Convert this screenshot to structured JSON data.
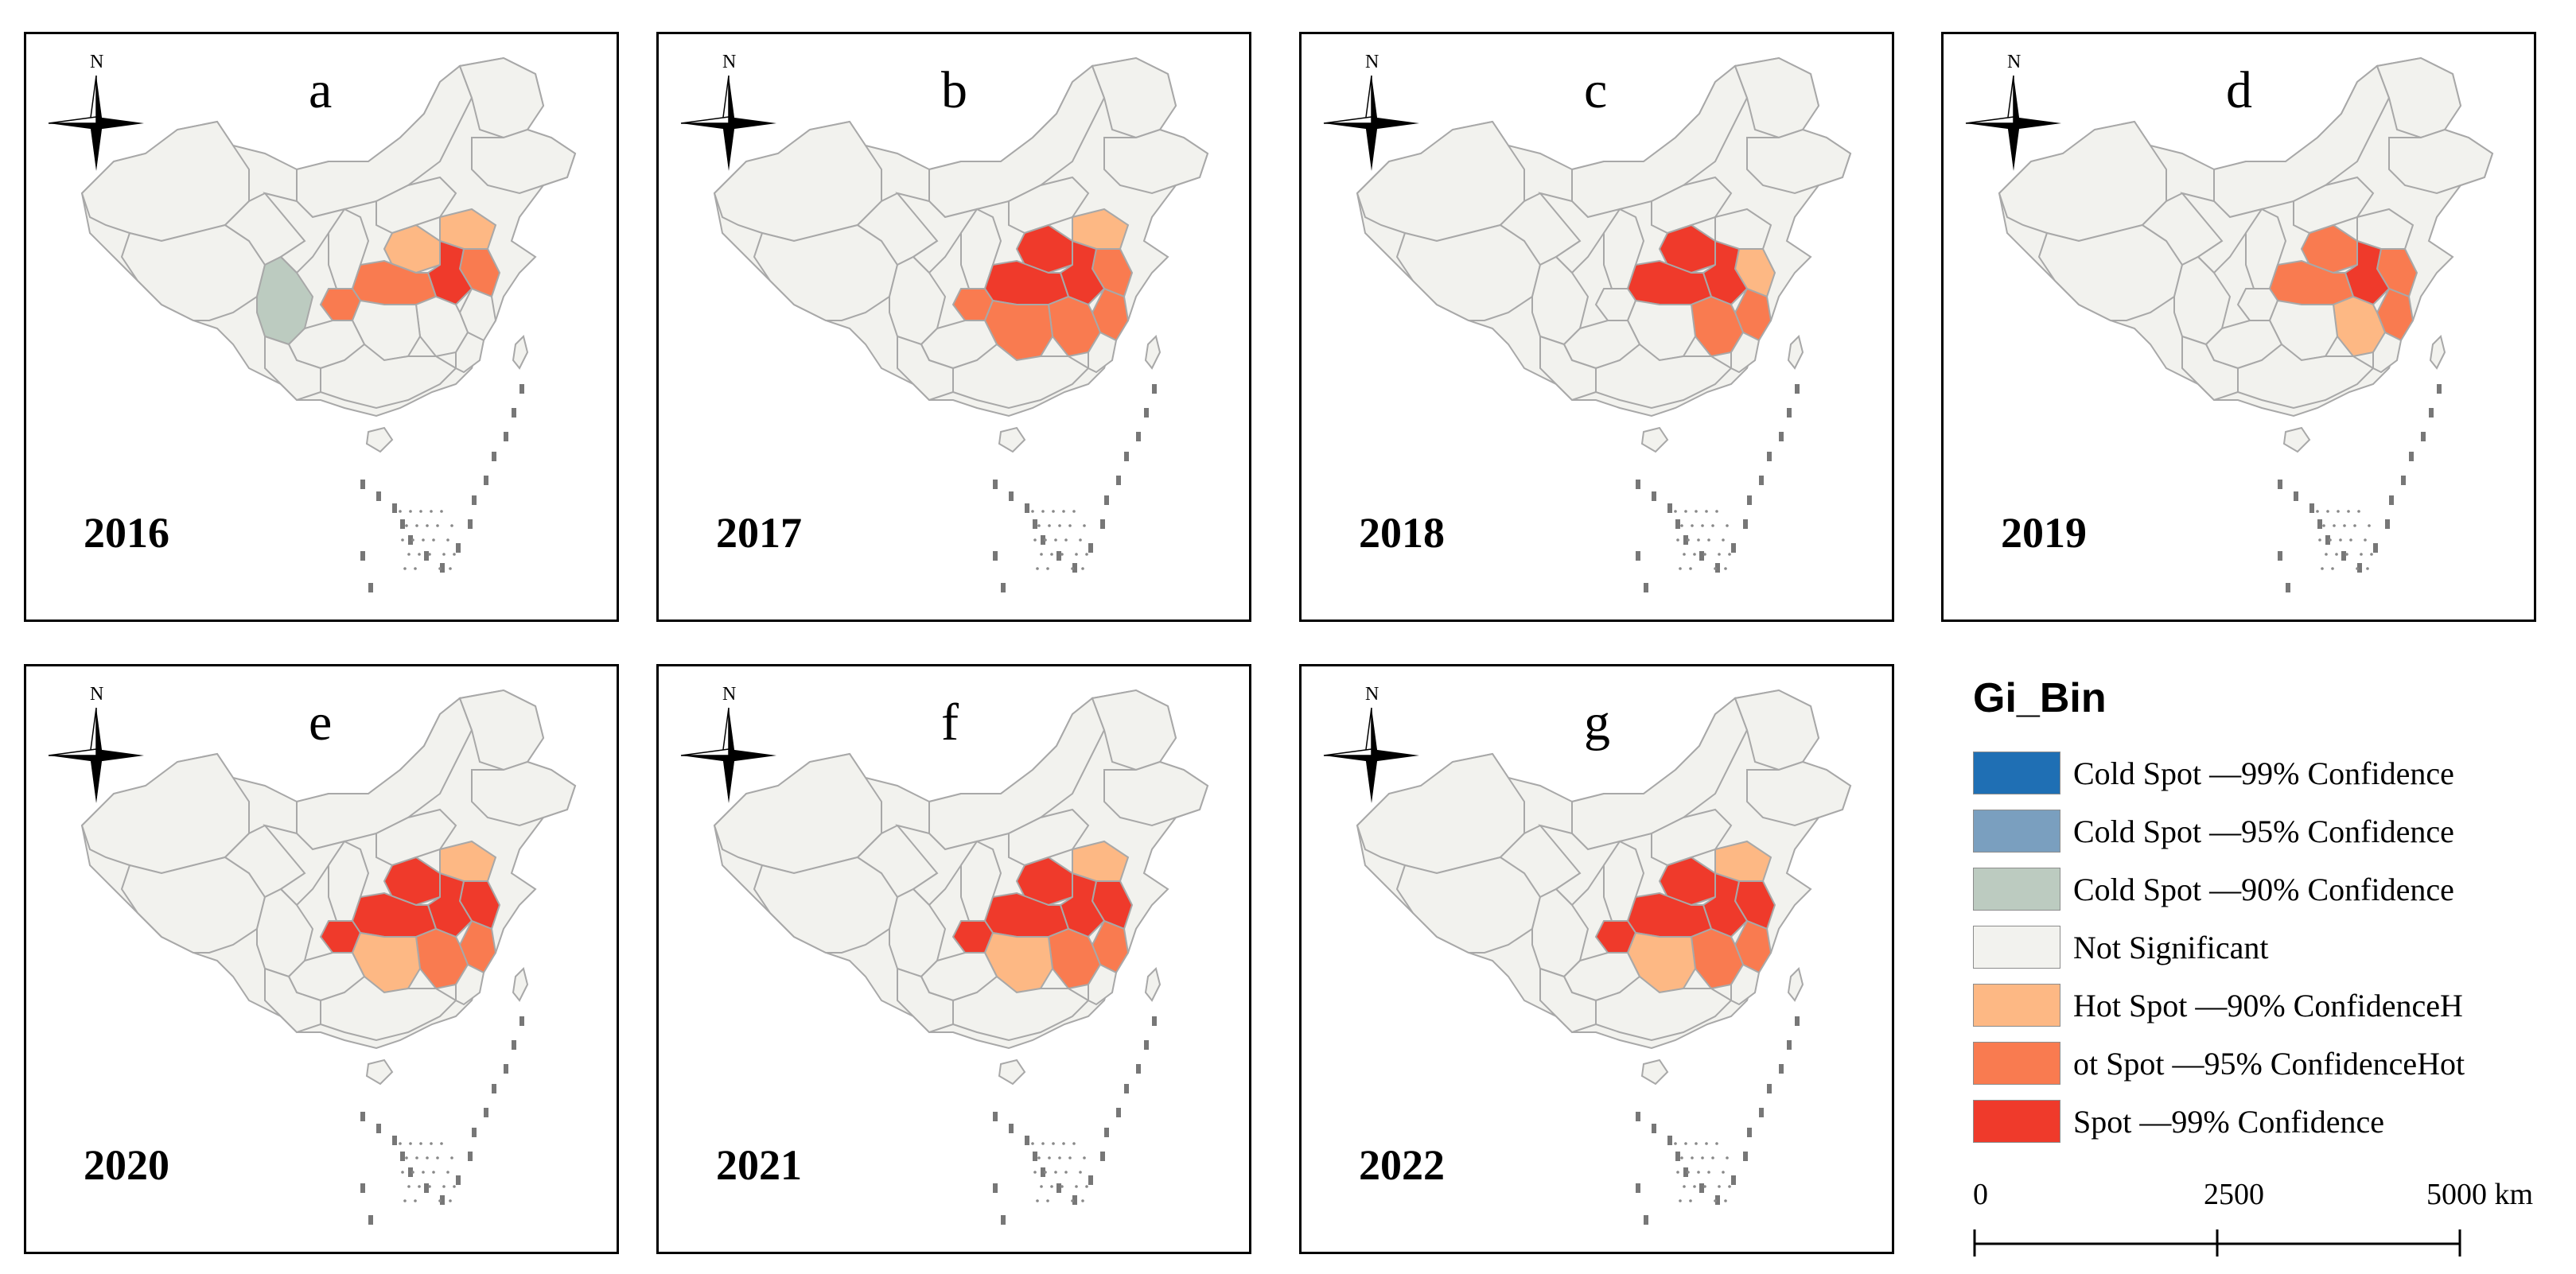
{
  "panels": [
    {
      "letter": "a",
      "year": "2016",
      "regions": {
        "qinghai_tibet_east": "cold90",
        "henan": "hot90",
        "shaanxi": "not",
        "hubei": "hot95",
        "anhui": "hot99",
        "jiangsu": "hot95",
        "zhejiang": "not",
        "jiangxi": "not",
        "hunan": "not",
        "shandong": "hot90",
        "chongqing": "hot95"
      }
    },
    {
      "letter": "b",
      "year": "2017",
      "regions": {
        "qinghai_tibet_east": "not",
        "henan": "hot99",
        "shaanxi": "not",
        "hubei": "hot99",
        "anhui": "hot99",
        "jiangsu": "hot95",
        "zhejiang": "hot95",
        "jiangxi": "hot95",
        "hunan": "hot95",
        "shandong": "hot90",
        "chongqing": "hot95"
      }
    },
    {
      "letter": "c",
      "year": "2018",
      "regions": {
        "qinghai_tibet_east": "not",
        "henan": "hot99",
        "shaanxi": "not",
        "hubei": "hot99",
        "anhui": "hot99",
        "jiangsu": "hot90",
        "zhejiang": "hot95",
        "jiangxi": "hot95",
        "hunan": "not",
        "shandong": "not",
        "chongqing": "not"
      }
    },
    {
      "letter": "d",
      "year": "2019",
      "regions": {
        "qinghai_tibet_east": "not",
        "henan": "hot95",
        "shaanxi": "not",
        "hubei": "hot95",
        "anhui": "hot99",
        "jiangsu": "hot95",
        "zhejiang": "hot95",
        "jiangxi": "hot90",
        "hunan": "not",
        "shandong": "not",
        "chongqing": "not"
      }
    },
    {
      "letter": "e",
      "year": "2020",
      "regions": {
        "qinghai_tibet_east": "not",
        "henan": "hot99",
        "shaanxi": "not",
        "hubei": "hot99",
        "anhui": "hot99",
        "jiangsu": "hot99",
        "zhejiang": "hot95",
        "jiangxi": "hot95",
        "hunan": "hot90",
        "shandong": "hot90",
        "chongqing": "hot99"
      }
    },
    {
      "letter": "f",
      "year": "2021",
      "regions": {
        "qinghai_tibet_east": "not",
        "henan": "hot99",
        "shaanxi": "not",
        "hubei": "hot99",
        "anhui": "hot99",
        "jiangsu": "hot99",
        "zhejiang": "hot95",
        "jiangxi": "hot95",
        "hunan": "hot90",
        "shandong": "hot90",
        "chongqing": "hot99"
      }
    },
    {
      "letter": "g",
      "year": "2022",
      "regions": {
        "qinghai_tibet_east": "not",
        "henan": "hot99",
        "shaanxi": "not",
        "hubei": "hot99",
        "anhui": "hot99",
        "jiangsu": "hot99",
        "zhejiang": "hot95",
        "jiangxi": "hot95",
        "hunan": "hot90",
        "shandong": "hot90",
        "chongqing": "hot99"
      }
    }
  ],
  "north_label": "N",
  "legend": {
    "title": "Gi_Bin",
    "items": [
      {
        "key": "cold99",
        "label": "Cold Spot —99% Confidence",
        "color": "#1f6fb4"
      },
      {
        "key": "cold95",
        "label": "Cold Spot —95% Confidence",
        "color": "#7a9fbf"
      },
      {
        "key": "cold90",
        "label": "Cold Spot —90% Confidence",
        "color": "#bccbc0"
      },
      {
        "key": "not",
        "label": "Not Significant",
        "color": "#f2f2ee"
      },
      {
        "key": "hot90",
        "label": "Hot Spot —90% ConfidenceH",
        "color": "#fdb884"
      },
      {
        "key": "hot95",
        "label": "ot Spot —95% ConfidenceHot",
        "color": "#f97b50"
      },
      {
        "key": "hot99",
        "label": "Spot —99% Confidence",
        "color": "#ef3a2b"
      }
    ]
  },
  "scalebar": {
    "labels": [
      "0",
      "2500",
      "5000 km"
    ]
  },
  "colors": {
    "border": "#a8a8a8",
    "base": "#f2f2ee"
  }
}
